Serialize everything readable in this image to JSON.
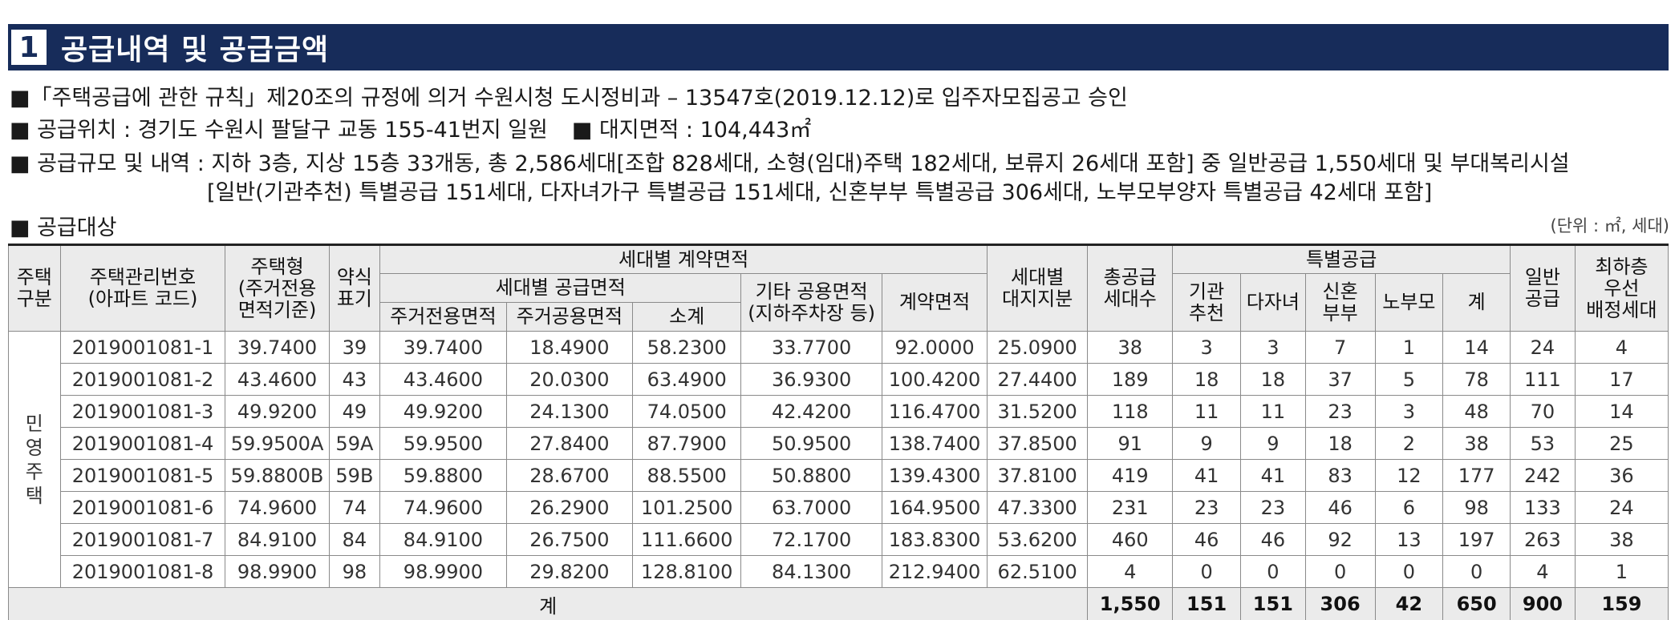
{
  "title": {
    "number": "1",
    "text": "공급내역 및 공급금액"
  },
  "notes": {
    "line1": "■「주택공급에 관한 규칙」제20조의 규정에 의거 수원시청 도시정비과 – 13547호(2019.12.12)로 입주자모집공고 승인",
    "line2a": "■ 공급위치 : 경기도 수원시 팔달구 교동 155-41번지 일원",
    "line2b": "■ 대지면적 : 104,443㎡",
    "line3": "■ 공급규모 및 내역 : 지하 3층, 지상 15층 33개동, 총 2,586세대[조합 828세대, 소형(임대)주택 182세대, 보류지 26세대 포함] 중 일반공급 1,550세대 및 부대복리시설",
    "line4": "[일반(기관추천) 특별공급 151세대, 다자녀가구 특별공급 151세대, 신혼부부 특별공급 306세대, 노부모부양자 특별공급 42세대 포함]"
  },
  "section": {
    "label": "■ 공급대상",
    "unit": "(단위 : ㎡, 세대)"
  },
  "table": {
    "headers": {
      "housing_type_class": "주택\n구분",
      "mgmt_no": "주택관리번호\n(아파트 코드)",
      "housing_type": "주택형\n(주거전용\n면적기준)",
      "abbr": "약식\n표기",
      "contract_area_group": "세대별 계약면적",
      "supply_area_group": "세대별 공급면적",
      "exclusive": "주거전용면적",
      "common": "주거공용면적",
      "subtotal": "소계",
      "other_common": "기타 공용면적\n(지하주차장 등)",
      "contract_area": "계약면적",
      "land_share": "세대별\n대지지분",
      "total_units": "총공급\n세대수",
      "special_group": "특별공급",
      "institution": "기관\n추천",
      "multi_child": "다자녀",
      "newlywed": "신혼\n부부",
      "elderly": "노부모",
      "special_sum": "계",
      "general": "일반\n공급",
      "priority": "최하층\n우선\n배정세대"
    },
    "row_group_label": "민\n영\n주\n택",
    "rows": [
      [
        "2019001081-1",
        "39.7400",
        "39",
        "39.7400",
        "18.4900",
        "58.2300",
        "33.7700",
        "92.0000",
        "25.0900",
        "38",
        "3",
        "3",
        "7",
        "1",
        "14",
        "24",
        "4"
      ],
      [
        "2019001081-2",
        "43.4600",
        "43",
        "43.4600",
        "20.0300",
        "63.4900",
        "36.9300",
        "100.4200",
        "27.4400",
        "189",
        "18",
        "18",
        "37",
        "5",
        "78",
        "111",
        "17"
      ],
      [
        "2019001081-3",
        "49.9200",
        "49",
        "49.9200",
        "24.1300",
        "74.0500",
        "42.4200",
        "116.4700",
        "31.5200",
        "118",
        "11",
        "11",
        "23",
        "3",
        "48",
        "70",
        "14"
      ],
      [
        "2019001081-4",
        "59.9500A",
        "59A",
        "59.9500",
        "27.8400",
        "87.7900",
        "50.9500",
        "138.7400",
        "37.8500",
        "91",
        "9",
        "9",
        "18",
        "2",
        "38",
        "53",
        "25"
      ],
      [
        "2019001081-5",
        "59.8800B",
        "59B",
        "59.8800",
        "28.6700",
        "88.5500",
        "50.8800",
        "139.4300",
        "37.8100",
        "419",
        "41",
        "41",
        "83",
        "12",
        "177",
        "242",
        "36"
      ],
      [
        "2019001081-6",
        "74.9600",
        "74",
        "74.9600",
        "26.2900",
        "101.2500",
        "63.7000",
        "164.9500",
        "47.3300",
        "231",
        "23",
        "23",
        "46",
        "6",
        "98",
        "133",
        "24"
      ],
      [
        "2019001081-7",
        "84.9100",
        "84",
        "84.9100",
        "26.7500",
        "111.6600",
        "72.1700",
        "183.8300",
        "53.6200",
        "460",
        "46",
        "46",
        "92",
        "13",
        "197",
        "263",
        "38"
      ],
      [
        "2019001081-8",
        "98.9900",
        "98",
        "98.9900",
        "29.8200",
        "128.8100",
        "84.1300",
        "212.9400",
        "62.5100",
        "4",
        "0",
        "0",
        "0",
        "0",
        "0",
        "4",
        "1"
      ]
    ],
    "total": {
      "label": "계",
      "values": [
        "1,550",
        "151",
        "151",
        "306",
        "42",
        "650",
        "900",
        "159"
      ]
    }
  }
}
